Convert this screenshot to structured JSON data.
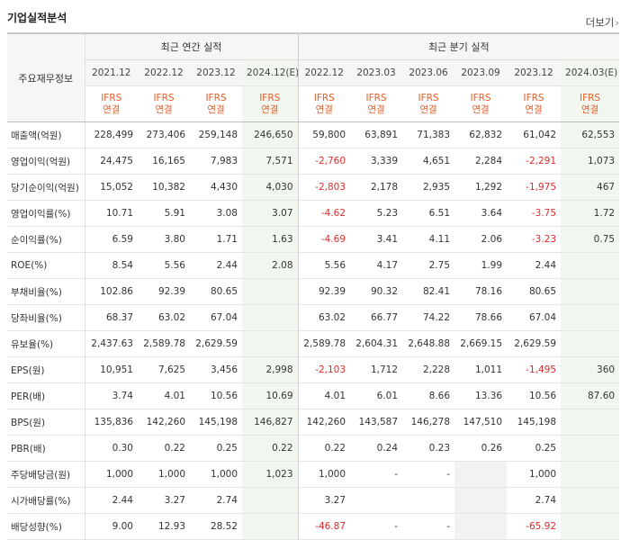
{
  "section_title": "기업실적분석",
  "more_link": "더보기",
  "header": {
    "row_label": "주요재무정보",
    "annual_group": "최근 연간 실적",
    "quarter_group": "최근 분기 실적",
    "annual_periods": [
      "2021.12",
      "2022.12",
      "2023.12",
      "2024.12(E)"
    ],
    "quarter_periods": [
      "2022.12",
      "2023.03",
      "2023.06",
      "2023.09",
      "2023.12",
      "2024.03(E)"
    ],
    "accounting_line1": "IFRS",
    "accounting_line2": "연결"
  },
  "rows": [
    {
      "label": "매출액(억원)",
      "values": [
        "228,499",
        "273,406",
        "259,148",
        "246,650",
        "59,800",
        "63,891",
        "71,383",
        "62,832",
        "61,042",
        "62,553"
      ]
    },
    {
      "label": "영업이익(억원)",
      "values": [
        "24,475",
        "16,165",
        "7,983",
        "7,571",
        "-2,760",
        "3,339",
        "4,651",
        "2,284",
        "-2,291",
        "1,073"
      ]
    },
    {
      "label": "당기순이익(억원)",
      "values": [
        "15,052",
        "10,382",
        "4,430",
        "4,030",
        "-2,803",
        "2,178",
        "2,935",
        "1,292",
        "-1,975",
        "467"
      ]
    },
    {
      "label": "영업이익률(%)",
      "values": [
        "10.71",
        "5.91",
        "3.08",
        "3.07",
        "-4.62",
        "5.23",
        "6.51",
        "3.64",
        "-3.75",
        "1.72"
      ]
    },
    {
      "label": "순이익률(%)",
      "values": [
        "6.59",
        "3.80",
        "1.71",
        "1.63",
        "-4.69",
        "3.41",
        "4.11",
        "2.06",
        "-3.23",
        "0.75"
      ]
    },
    {
      "label": "ROE(%)",
      "values": [
        "8.54",
        "5.56",
        "2.44",
        "2.08",
        "5.56",
        "4.17",
        "2.75",
        "1.99",
        "2.44",
        ""
      ]
    },
    {
      "label": "부채비율(%)",
      "values": [
        "102.86",
        "92.39",
        "80.65",
        "",
        "92.39",
        "90.32",
        "82.41",
        "78.16",
        "80.65",
        ""
      ]
    },
    {
      "label": "당좌비율(%)",
      "values": [
        "68.37",
        "63.02",
        "67.04",
        "",
        "63.02",
        "66.77",
        "74.22",
        "78.66",
        "67.04",
        ""
      ]
    },
    {
      "label": "유보율(%)",
      "values": [
        "2,437.63",
        "2,589.78",
        "2,629.59",
        "",
        "2,589.78",
        "2,604.31",
        "2,648.88",
        "2,669.15",
        "2,629.59",
        ""
      ]
    },
    {
      "label": "EPS(원)",
      "values": [
        "10,951",
        "7,625",
        "3,456",
        "2,998",
        "-2,103",
        "1,712",
        "2,228",
        "1,011",
        "-1,495",
        "360"
      ]
    },
    {
      "label": "PER(배)",
      "values": [
        "3.74",
        "4.01",
        "10.56",
        "10.69",
        "4.01",
        "6.01",
        "8.66",
        "13.36",
        "10.56",
        "87.60"
      ]
    },
    {
      "label": "BPS(원)",
      "values": [
        "135,836",
        "142,260",
        "145,198",
        "146,827",
        "142,260",
        "143,587",
        "146,278",
        "147,510",
        "145,198",
        ""
      ]
    },
    {
      "label": "PBR(배)",
      "values": [
        "0.30",
        "0.22",
        "0.25",
        "0.22",
        "0.22",
        "0.24",
        "0.23",
        "0.26",
        "0.25",
        ""
      ]
    },
    {
      "label": "주당배당금(원)",
      "values": [
        "1,000",
        "1,000",
        "1,000",
        "1,023",
        "1,000",
        "-",
        "-",
        "",
        "1,000",
        ""
      ]
    },
    {
      "label": "시가배당률(%)",
      "values": [
        "2.44",
        "3.27",
        "2.74",
        "",
        "3.27",
        "",
        "",
        "",
        "2.74",
        ""
      ]
    },
    {
      "label": "배당성향(%)",
      "values": [
        "9.00",
        "12.93",
        "28.52",
        "",
        "-46.87",
        "-",
        "-",
        "",
        "-65.92",
        ""
      ]
    }
  ],
  "colors": {
    "accent": "#e15d2a",
    "negative": "#e02b2b",
    "estimate_bg": "#f1f7ee",
    "estimate_mark": "#3a9a3a"
  }
}
